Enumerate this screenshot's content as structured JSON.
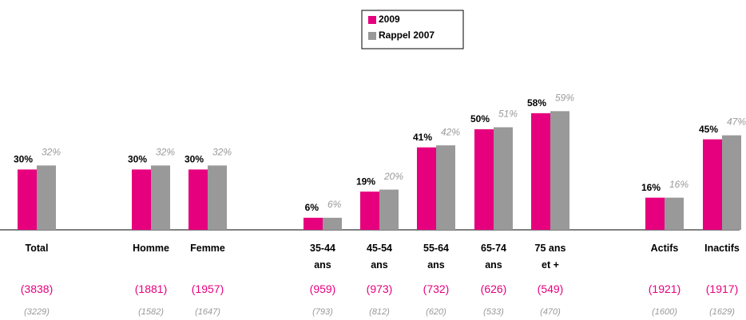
{
  "chart_data": {
    "type": "bar",
    "categories": [
      "Total",
      "Homme",
      "Femme",
      "35-44 ans",
      "45-54 ans",
      "55-64 ans",
      "65-74 ans",
      "75 ans et +",
      "Actifs",
      "Inactifs"
    ],
    "series": [
      {
        "name": "2009",
        "color": "#e6007e",
        "values": [
          30,
          30,
          30,
          6,
          19,
          41,
          50,
          58,
          16,
          45
        ],
        "value_labels": [
          "30%",
          "30%",
          "30%",
          "6%",
          "19%",
          "41%",
          "50%",
          "58%",
          "16%",
          "45%"
        ],
        "sample_sizes": [
          "(3838)",
          "(1881)",
          "(1957)",
          "(959)",
          "(973)",
          "(732)",
          "(626)",
          "(549)",
          "(1921)",
          "(1917)"
        ]
      },
      {
        "name": "Rappel 2007",
        "color": "#999999",
        "values": [
          32,
          32,
          32,
          6,
          20,
          42,
          51,
          59,
          16,
          47
        ],
        "value_labels": [
          "32%",
          "32%",
          "32%",
          "6%",
          "20%",
          "42%",
          "51%",
          "59%",
          "16%",
          "47%"
        ],
        "sample_sizes": [
          "(3229)",
          "(1582)",
          "(1647)",
          "(793)",
          "(812)",
          "(620)",
          "(533)",
          "(470)",
          "(1600)",
          "(1629)"
        ]
      }
    ],
    "ylim": [
      0,
      100
    ],
    "legend": "top"
  }
}
